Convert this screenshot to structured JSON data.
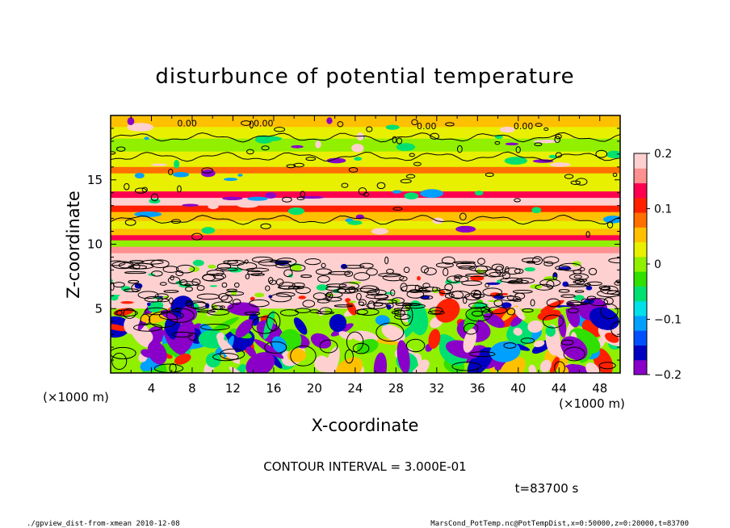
{
  "chart_data": {
    "type": "heatmap",
    "title": "disturbunce of potential temperature",
    "xlabel": "X-coordinate",
    "ylabel": "Z-coordinate",
    "x_unit": "(×1000 m)",
    "y_unit": "(×1000 m)",
    "xlim": [
      0,
      50
    ],
    "ylim": [
      0,
      20
    ],
    "x_ticks": [
      4,
      8,
      12,
      16,
      20,
      24,
      28,
      32,
      36,
      40,
      44,
      48
    ],
    "y_ticks": [
      5,
      10,
      15
    ],
    "colorbar": {
      "range": [
        -0.2,
        0.2
      ],
      "tick_values": [
        0.2,
        0.1,
        0,
        -0.1,
        -0.2
      ],
      "tick_labels": [
        "0.2",
        "0.1",
        "0",
        "−0.1",
        "−0.2"
      ],
      "colors": [
        "#8a00c8",
        "#0000c0",
        "#0050ff",
        "#00a0ff",
        "#00e0e8",
        "#00e070",
        "#30e000",
        "#90f000",
        "#e8f000",
        "#ffc000",
        "#ff7000",
        "#ff2000",
        "#ff0050",
        "#ff9090",
        "#ffd0d0"
      ]
    },
    "contour_interval_text": "CONTOUR INTERVAL = 3.000E-01",
    "contour_labels": [
      "0.00",
      "0.00",
      "0.00",
      "0.00"
    ],
    "time_text": "t=83700 s"
  },
  "footer": {
    "left": "./gpview_dist-from-xmean  2010-12-08",
    "right": "MarsCond_PotTemp.nc@PotTempDist,x=0:50000,z=0:20000,t=83700"
  }
}
